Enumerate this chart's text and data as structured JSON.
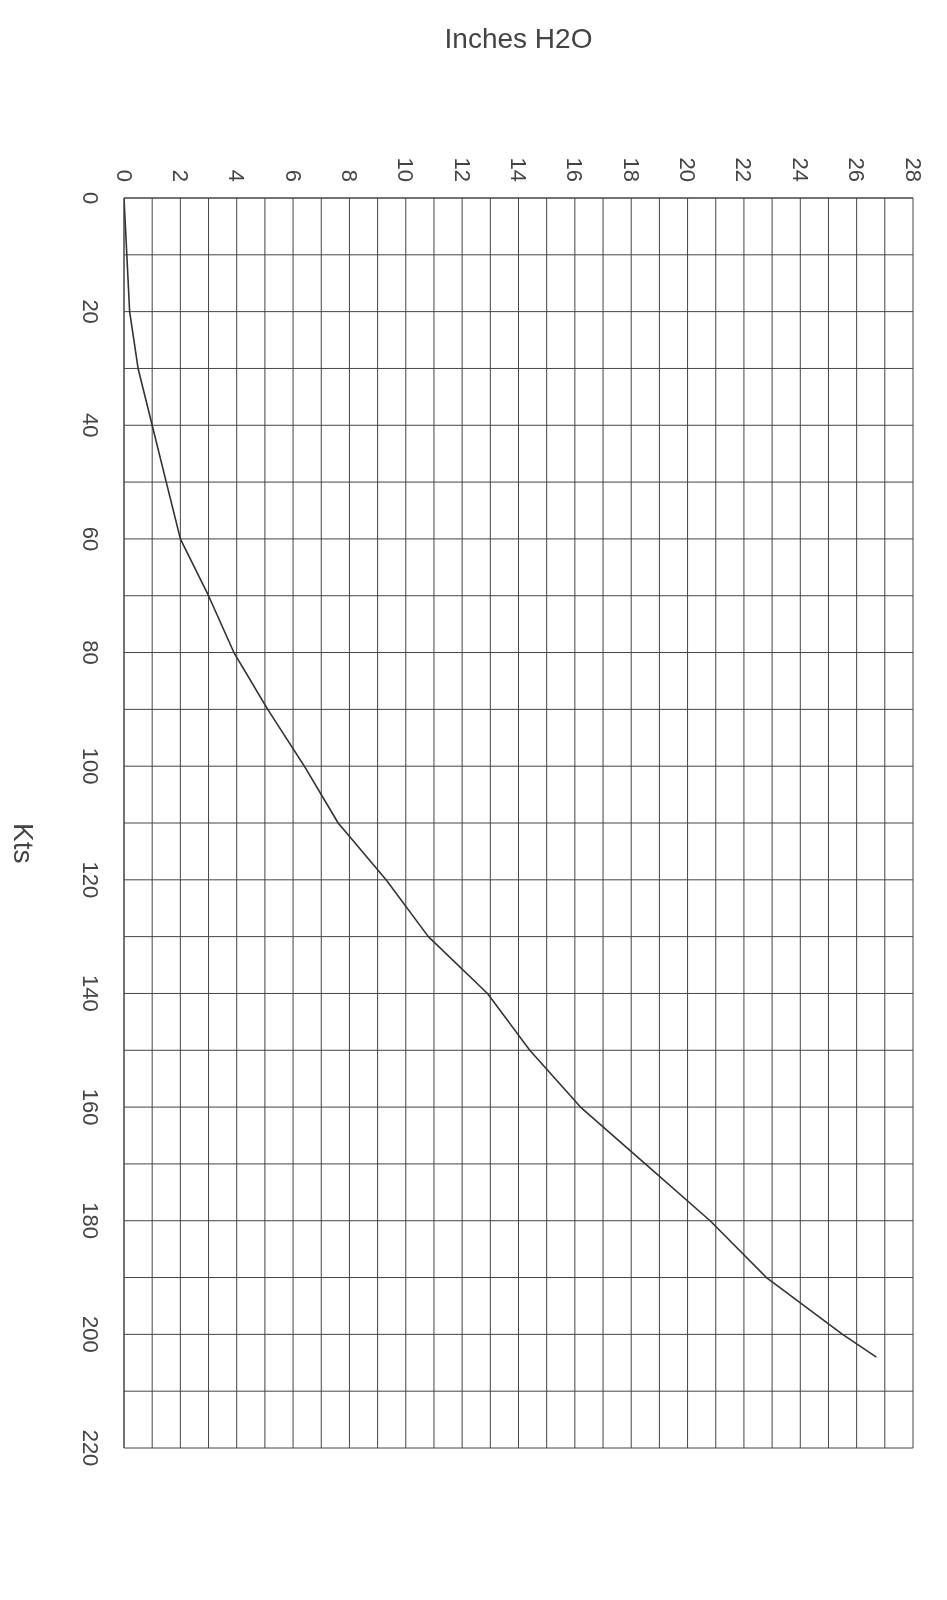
{
  "chart_data": {
    "type": "line",
    "xlabel": "Inches H2O",
    "ylabel": "Kts",
    "x": [
      0,
      0.1,
      0.2,
      0.5,
      1.0,
      1.5,
      2.0,
      3.0,
      3.9,
      5.1,
      6.4,
      7.6,
      9.3,
      10.8,
      12.9,
      14.4,
      16.2,
      18.5,
      20.8,
      22.8,
      25.5,
      26.7
    ],
    "series": [
      {
        "color": "#333333",
        "values": [
          0,
          10,
          20,
          30,
          40,
          50,
          60,
          70,
          80,
          90,
          100,
          110,
          120,
          130,
          140,
          150,
          160,
          170,
          180,
          190,
          200,
          204
        ]
      }
    ],
    "xlim": [
      0,
      28
    ],
    "xticks": [
      0,
      {
        "value": 1,
        "label": null
      },
      2,
      {
        "value": 3,
        "label": null
      },
      4,
      {
        "value": 5,
        "label": null
      },
      6,
      {
        "value": 7,
        "label": null
      },
      8,
      {
        "value": 9,
        "label": null
      },
      10,
      {
        "value": 11,
        "label": null
      },
      12,
      {
        "value": 13,
        "label": null
      },
      14,
      {
        "value": 15,
        "label": null
      },
      16,
      {
        "value": 17,
        "label": null
      },
      18,
      {
        "value": 19,
        "label": null
      },
      20,
      {
        "value": 21,
        "label": null
      },
      22,
      {
        "value": 23,
        "label": null
      },
      24,
      {
        "value": 25,
        "label": null
      },
      26,
      {
        "value": 27,
        "label": null
      },
      28
    ],
    "ylim": [
      220,
      0
    ],
    "yticks": [
      0,
      {
        "value": 10,
        "label": null
      },
      20,
      {
        "value": 30,
        "label": null
      },
      40,
      {
        "value": 50,
        "label": null
      },
      60,
      {
        "value": 70,
        "label": null
      },
      80,
      {
        "value": 90,
        "label": null
      },
      100,
      {
        "value": 110,
        "label": null
      },
      120,
      {
        "value": 130,
        "label": null
      },
      140,
      {
        "value": 150,
        "label": null
      },
      160,
      {
        "value": 170,
        "label": null
      },
      180,
      {
        "value": 190,
        "label": null
      },
      200,
      {
        "value": 210,
        "label": null
      },
      220
    ],
    "grid": true,
    "marker": "none",
    "line_style": "solid"
  }
}
